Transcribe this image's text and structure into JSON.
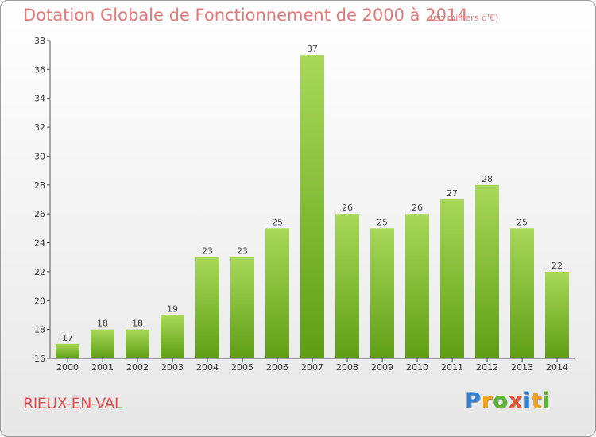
{
  "title": "Dotation Globale de Fonctionnement de 2000 à 2014",
  "subtitle": "(en milliers d'€)",
  "commune": "RIEUX-EN-VAL",
  "logo": {
    "letters": [
      "P",
      "r",
      "o",
      "x",
      "i",
      "t",
      "i"
    ],
    "colors": [
      "#2f7fd6",
      "#f2a21a",
      "#58b52d",
      "#e8542f",
      "#2f7fd6",
      "#f2a21a",
      "#58b52d"
    ]
  },
  "colors": {
    "bar_top": "#a8d85a",
    "bar_bottom": "#5f9e14",
    "accent": "#e07a7a"
  },
  "chart_data": {
    "type": "bar",
    "categories": [
      "2000",
      "2001",
      "2002",
      "2003",
      "2004",
      "2005",
      "2006",
      "2007",
      "2008",
      "2009",
      "2010",
      "2011",
      "2012",
      "2013",
      "2014"
    ],
    "values": [
      17,
      18,
      18,
      19,
      23,
      23,
      25,
      37,
      26,
      25,
      26,
      27,
      28,
      25,
      22
    ],
    "ylim": [
      16,
      38
    ],
    "yticks": [
      16,
      18,
      20,
      22,
      24,
      26,
      28,
      30,
      32,
      34,
      36,
      38
    ],
    "grid": false,
    "xlabel": "",
    "ylabel": ""
  }
}
